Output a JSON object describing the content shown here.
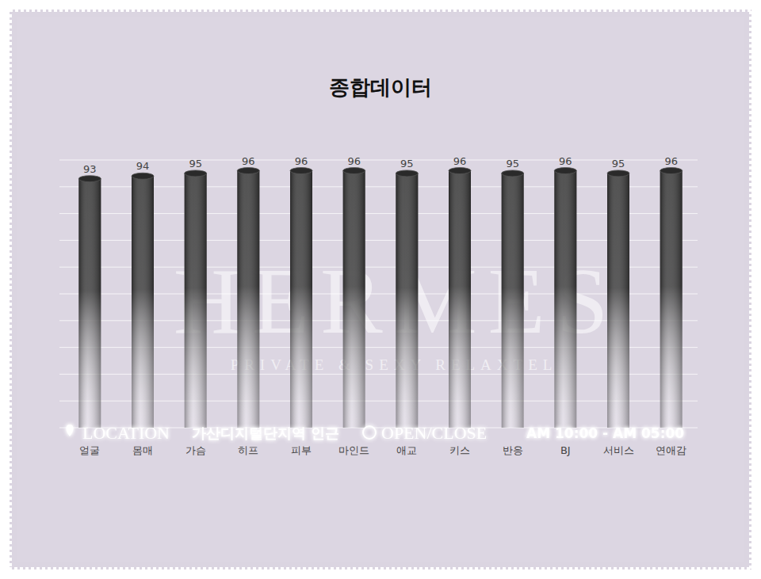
{
  "chart_data": {
    "type": "bar",
    "title": "종합데이터",
    "categories": [
      "얼굴",
      "몸매",
      "가슴",
      "히프",
      "피부",
      "마인드",
      "애교",
      "키스",
      "반응",
      "BJ",
      "서비스",
      "연애감"
    ],
    "values": [
      93,
      94,
      95,
      96,
      96,
      96,
      95,
      96,
      95,
      96,
      95,
      96
    ],
    "color": "#3c3c3c",
    "ylim": [
      0,
      100
    ],
    "yticks": [
      0,
      10,
      20,
      30,
      40,
      50,
      60,
      70,
      80,
      90,
      100
    ],
    "grid": true,
    "data_labels": true,
    "tick_labels": "x",
    "annotations": [
      "HERMES",
      "PRIVATE & SEXY RELAXTEL",
      "LOCATION",
      "가산디지털단지역 인근",
      "OPEN/CLOSE",
      "AM 10:00 - AM 05:00"
    ]
  }
}
